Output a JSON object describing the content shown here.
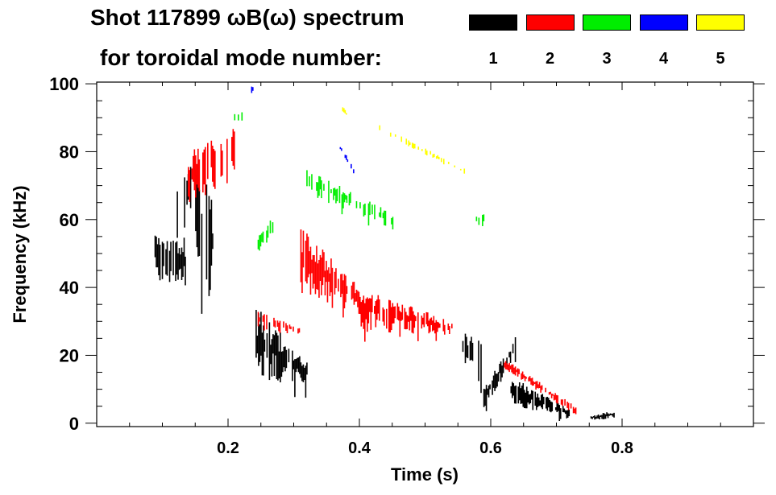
{
  "chart_data": {
    "type": "heatmap",
    "title_line1": "Shot 117899 ωB(ω) spectrum",
    "title_line2": "for toroidal mode number:",
    "xlabel": "Time (s)",
    "ylabel": "Frequency (kHz)",
    "xlim": [
      0,
      1.0
    ],
    "ylim": [
      -1,
      100.5
    ],
    "xticks": [
      {
        "v": 0.2,
        "label": "0.2"
      },
      {
        "v": 0.4,
        "label": "0.4"
      },
      {
        "v": 0.6,
        "label": "0.6"
      },
      {
        "v": 0.8,
        "label": "0.8"
      }
    ],
    "yticks": [
      {
        "v": 0,
        "label": "0"
      },
      {
        "v": 20,
        "label": "20"
      },
      {
        "v": 40,
        "label": "40"
      },
      {
        "v": 60,
        "label": "60"
      },
      {
        "v": 80,
        "label": "80"
      },
      {
        "v": 100,
        "label": "100"
      }
    ],
    "legend": [
      {
        "mode": "1",
        "color": "#000000"
      },
      {
        "mode": "2",
        "color": "#ff0000"
      },
      {
        "mode": "3",
        "color": "#00ee00"
      },
      {
        "mode": "4",
        "color": "#0000ff"
      },
      {
        "mode": "5",
        "color": "#ffff00"
      }
    ],
    "regions": [
      {
        "mode": "1",
        "t": [
          0.088,
          0.135
        ],
        "f_start": [
          42,
          57
        ],
        "f_end": [
          40,
          55
        ],
        "density": 0.9,
        "tail": 18
      },
      {
        "mode": "1",
        "t": [
          0.12,
          0.145
        ],
        "f_start": [
          55,
          72
        ],
        "f_end": [
          60,
          76
        ],
        "density": 0.5,
        "tail": 5
      },
      {
        "mode": "1",
        "t": [
          0.148,
          0.178
        ],
        "f_start": [
          40,
          78
        ],
        "f_end": [
          30,
          72
        ],
        "density": 0.8,
        "tail": 20
      },
      {
        "mode": "1",
        "t": [
          0.24,
          0.32
        ],
        "f_start": [
          12,
          35
        ],
        "f_end": [
          12,
          18
        ],
        "density": 0.85,
        "tail": 6
      },
      {
        "mode": "1",
        "t": [
          0.553,
          0.585
        ],
        "f_start": [
          20,
          27
        ],
        "f_end": [
          8,
          25
        ],
        "density": 0.7,
        "tail": 3
      },
      {
        "mode": "1",
        "t": [
          0.585,
          0.64
        ],
        "f_start": [
          3,
          9
        ],
        "f_end": [
          20,
          27
        ],
        "density": 0.8,
        "tail": 3
      },
      {
        "mode": "1",
        "t": [
          0.63,
          0.72
        ],
        "f_start": [
          5,
          14
        ],
        "f_end": [
          1,
          4
        ],
        "density": 0.85,
        "tail": 2
      },
      {
        "mode": "1",
        "t": [
          0.75,
          0.787
        ],
        "f_start": [
          1,
          2
        ],
        "f_end": [
          1,
          4
        ],
        "density": 0.9,
        "tail": 0
      },
      {
        "mode": "2",
        "t": [
          0.135,
          0.21
        ],
        "f_start": [
          64,
          80
        ],
        "f_end": [
          72,
          87
        ],
        "density": 0.6,
        "tail": 4
      },
      {
        "mode": "2",
        "t": [
          0.245,
          0.31
        ],
        "f_start": [
          28,
          33
        ],
        "f_end": [
          26,
          28
        ],
        "density": 0.6,
        "tail": 1
      },
      {
        "mode": "2",
        "t": [
          0.31,
          0.4
        ],
        "f_start": [
          38,
          58
        ],
        "f_end": [
          32,
          40
        ],
        "density": 0.85,
        "tail": 6
      },
      {
        "mode": "2",
        "t": [
          0.4,
          0.54
        ],
        "f_start": [
          27,
          40
        ],
        "f_end": [
          26,
          30
        ],
        "density": 0.8,
        "tail": 4
      },
      {
        "mode": "2",
        "t": [
          0.62,
          0.73
        ],
        "f_start": [
          16,
          19
        ],
        "f_end": [
          2,
          5
        ],
        "density": 0.7,
        "tail": 1
      },
      {
        "mode": "3",
        "t": [
          0.31,
          0.45
        ],
        "f_start": [
          68,
          76
        ],
        "f_end": [
          57,
          62
        ],
        "density": 0.6,
        "tail": 3
      },
      {
        "mode": "3",
        "t": [
          0.245,
          0.27
        ],
        "f_start": [
          50,
          55
        ],
        "f_end": [
          56,
          62
        ],
        "density": 0.5,
        "tail": 2
      },
      {
        "mode": "3",
        "t": [
          0.2,
          0.23
        ],
        "f_start": [
          88,
          92
        ],
        "f_end": [
          88,
          92
        ],
        "density": 0.3,
        "tail": 0
      },
      {
        "mode": "3",
        "t": [
          0.57,
          0.59
        ],
        "f_start": [
          58,
          62
        ],
        "f_end": [
          58,
          62
        ],
        "density": 0.4,
        "tail": 0
      },
      {
        "mode": "4",
        "t": [
          0.37,
          0.395
        ],
        "f_start": [
          80,
          82
        ],
        "f_end": [
          72,
          74
        ],
        "density": 0.4,
        "tail": 0
      },
      {
        "mode": "4",
        "t": [
          0.235,
          0.24
        ],
        "f_start": [
          97,
          100
        ],
        "f_end": [
          97,
          100
        ],
        "density": 0.5,
        "tail": 0
      },
      {
        "mode": "5",
        "t": [
          0.43,
          0.56
        ],
        "f_start": [
          86,
          88
        ],
        "f_end": [
          73,
          75
        ],
        "density": 0.35,
        "tail": 0
      },
      {
        "mode": "5",
        "t": [
          0.37,
          0.38
        ],
        "f_start": [
          92,
          94
        ],
        "f_end": [
          90,
          92
        ],
        "density": 0.6,
        "tail": 0
      }
    ]
  }
}
